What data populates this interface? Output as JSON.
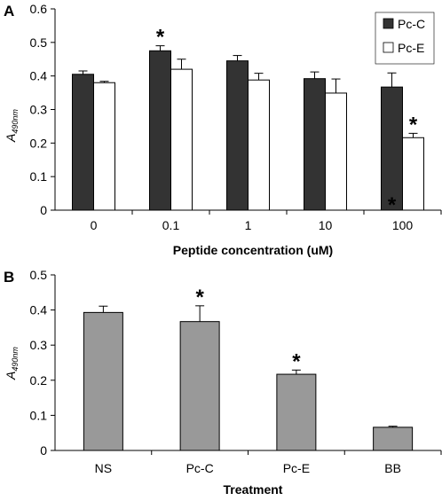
{
  "chart_data": [
    {
      "panel": "A",
      "type": "bar",
      "categories": [
        "0",
        "0.1",
        "1",
        "10",
        "100"
      ],
      "series": [
        {
          "name": "Pc-C",
          "color": "#333333",
          "values": [
            0.405,
            0.475,
            0.445,
            0.392,
            0.367
          ],
          "errors": [
            0.01,
            0.015,
            0.016,
            0.02,
            0.042
          ]
        },
        {
          "name": "Pc-E",
          "color": "#ffffff",
          "values": [
            0.38,
            0.42,
            0.388,
            0.349,
            0.216
          ],
          "errors": [
            0.004,
            0.03,
            0.02,
            0.042,
            0.013
          ]
        }
      ],
      "significance": [
        {
          "category": "0.1",
          "series": "Pc-C",
          "label": "*"
        },
        {
          "category": "100",
          "series": "Pc-E",
          "label": "*"
        },
        {
          "category": "100",
          "series": "Pc-C",
          "label": "*",
          "position": "base"
        }
      ],
      "xlabel": "Peptide concentration (uM)",
      "ylabel": "A",
      "ylabel_sub": "490nm",
      "ylim": [
        0,
        0.6
      ],
      "yticks": [
        "0",
        "0.1",
        "0.2",
        "0.3",
        "0.4",
        "0.5",
        "0.6"
      ],
      "legend": "top-right",
      "grid": false
    },
    {
      "panel": "B",
      "type": "bar",
      "categories": [
        "NS",
        "Pc-C",
        "Pc-E",
        "BB"
      ],
      "series": [
        {
          "color": "#999999",
          "values": [
            0.393,
            0.367,
            0.217,
            0.066
          ],
          "errors": [
            0.018,
            0.045,
            0.012,
            0.003
          ]
        }
      ],
      "significance": [
        {
          "category": "Pc-C",
          "label": "*"
        },
        {
          "category": "Pc-E",
          "label": "*"
        }
      ],
      "xlabel": "Treatment",
      "ylabel": "A",
      "ylabel_sub": "490nm",
      "ylim": [
        0,
        0.5
      ],
      "yticks": [
        "0",
        "0.1",
        "0.2",
        "0.3",
        "0.4",
        "0.5"
      ],
      "grid": false
    }
  ]
}
